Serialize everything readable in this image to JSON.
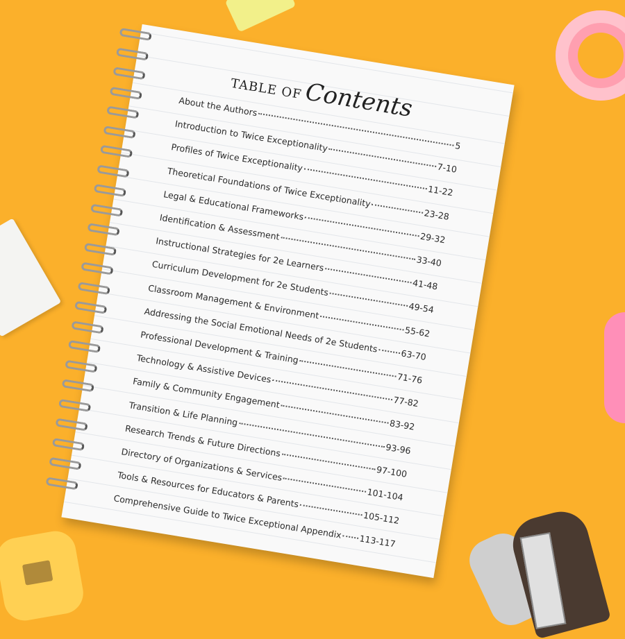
{
  "toc": {
    "title_prefix": "TABLE OF",
    "title_main": "Contents",
    "entries": [
      {
        "title": "About the Authors",
        "pages": "5"
      },
      {
        "title": "Introduction to Twice Exceptionality",
        "pages": "7-10"
      },
      {
        "title": "Profiles of Twice Exceptionality",
        "pages": "11-22"
      },
      {
        "title": "Theoretical Foundations of Twice Exceptionality",
        "pages": "23-28"
      },
      {
        "title": "Legal & Educational Frameworks",
        "pages": "29-32"
      },
      {
        "title": "Identification & Assessment",
        "pages": "33-40"
      },
      {
        "title": "Instructional Strategies for 2e Learners",
        "pages": "41-48"
      },
      {
        "title": "Curriculum Development for 2e Students",
        "pages": "49-54"
      },
      {
        "title": "Classroom Management & Environment",
        "pages": "55-62"
      },
      {
        "title": "Addressing the Social Emotional Needs of 2e Students",
        "pages": "63-70"
      },
      {
        "title": "Professional Development & Training",
        "pages": "71-76"
      },
      {
        "title": "Technology & Assistive Devices",
        "pages": "77-82"
      },
      {
        "title": "Family & Community Engagement",
        "pages": "83-92"
      },
      {
        "title": "Transition & Life Planning",
        "pages": "93-96"
      },
      {
        "title": "Research Trends & Future Directions",
        "pages": "97-100"
      },
      {
        "title": "Directory of Organizations & Services",
        "pages": "101-104"
      },
      {
        "title": "Tools & Resources for Educators & Parents",
        "pages": "105-112"
      },
      {
        "title": "Comprehensive Guide to Twice Exceptional Appendix",
        "pages": "113-117"
      }
    ]
  },
  "colors": {
    "background": "#fbb02b",
    "page": "#f9f9f9",
    "text": "#2a2a2a"
  }
}
